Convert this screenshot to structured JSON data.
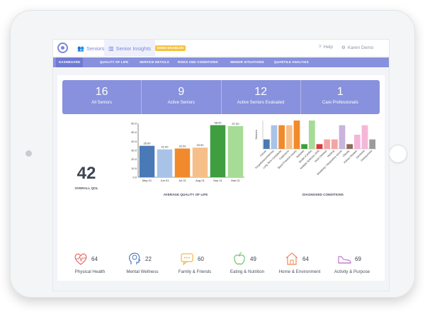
{
  "topbar": {
    "tabs": [
      {
        "label": "Seniors",
        "icon": "people-icon"
      },
      {
        "label": "Senior Insights",
        "icon": "chart-icon"
      }
    ],
    "badge": "DEMO ENABLED",
    "help_label": "Help",
    "user_label": "Karen Demo"
  },
  "subnav": {
    "items": [
      "DASHBOARD",
      "QUALITY OF LIFE",
      "SERVICE DETAILS",
      "RISKS AND CONDITIONS",
      "SENIOR SITUATIONS",
      "QUARTILE ANALYSIS"
    ],
    "active": "DASHBOARD"
  },
  "stats": [
    {
      "value": "16",
      "label": "All Seniors"
    },
    {
      "value": "9",
      "label": "Active Seniors"
    },
    {
      "value": "12",
      "label": "Active Seniors Evaluated"
    },
    {
      "value": "1",
      "label": "Care Professionals"
    }
  ],
  "overall_qol": {
    "value": "42",
    "label": "OVERALL QOL"
  },
  "chart_data": [
    {
      "type": "bar",
      "title": "AVERAGE QUALITY OF LIFE",
      "categories": [
        "May 01",
        "Jun 01",
        "Jul 01",
        "Aug 01",
        "Sep 01",
        "Mar 01"
      ],
      "values": [
        35,
        31,
        32,
        33,
        58,
        57
      ],
      "value_labels": [
        "35.00",
        "31.00",
        "32.00",
        "33.00",
        "58.00",
        "57.00"
      ],
      "ytick_labels": [
        "60.0",
        "50.0",
        "40.0",
        "30.0",
        "20.0",
        "10.0",
        "0.0"
      ],
      "ylim": [
        0,
        60
      ],
      "colors": [
        "#4a79b7",
        "#a9c3e8",
        "#f08a2d",
        "#f6bf8a",
        "#3f9e3f",
        "#a6dc95"
      ]
    },
    {
      "type": "bar",
      "title": "DIAGNOSED CONDITIONS",
      "ylabel": "Seniors",
      "categories": [
        "Cancer",
        "Forgetfulness/Memory",
        "Long Term Complexity",
        "Parkinsons",
        "Blood Pressure Issues",
        "Diabetes",
        "Stroke (Cardio)",
        "Multiple Sclerosis (MS)",
        "Heart Disease",
        "Hearing",
        "Breathing / Respiratory Issues",
        "Obesity",
        "Kidney Disease",
        "Dementia",
        "Osteoporosis"
      ],
      "values": [
        2,
        5,
        5,
        5,
        6,
        1,
        6,
        1,
        2,
        2,
        5,
        1,
        3,
        5,
        2
      ],
      "ylim": [
        0,
        6
      ],
      "colors": [
        "#4a79b7",
        "#a9c3e8",
        "#f08a2d",
        "#f6bf8a",
        "#f08a2d",
        "#3f9e3f",
        "#a6dc95",
        "#d83a3a",
        "#f4a4a4",
        "#f4a4a4",
        "#c9b4dc",
        "#8d6c5a",
        "#f4b7d8",
        "#f4b7d8",
        "#9b9b9b"
      ]
    }
  ],
  "domains": [
    {
      "name": "Physical Health",
      "score": "64",
      "icon": "heart-pulse-icon",
      "color": "#e36b6b"
    },
    {
      "name": "Mental Wellness",
      "score": "22",
      "icon": "head-brain-icon",
      "color": "#4a79b7"
    },
    {
      "name": "Family & Friends",
      "score": "60",
      "icon": "chat-bubble-icon",
      "color": "#f0b94a"
    },
    {
      "name": "Eating & Nutrition",
      "score": "49",
      "icon": "apple-icon",
      "color": "#6cc46c"
    },
    {
      "name": "Home & Environment",
      "score": "64",
      "icon": "house-icon",
      "color": "#f08a5a"
    },
    {
      "name": "Activity & Purpose",
      "score": "69",
      "icon": "sneaker-icon",
      "color": "#c07ad0"
    }
  ]
}
